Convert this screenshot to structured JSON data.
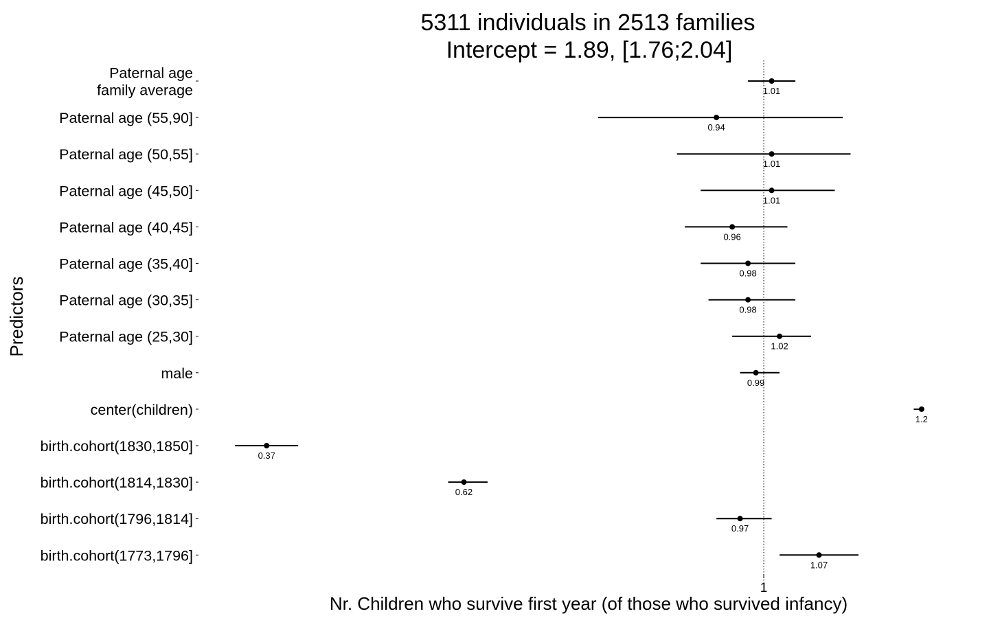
{
  "chart_data": {
    "type": "forest",
    "title_lines": [
      "5311 individuals in 2513 families",
      "Intercept = 1.89, [1.76;2.04]"
    ],
    "xlabel": "Nr. Children who survive first year (of those who survived infancy)",
    "ylabel": "Predictors",
    "reference_value": 1,
    "x_ticks": [
      {
        "value": 1,
        "label": "1"
      }
    ],
    "grid": false,
    "legend": "none",
    "xlim": [
      0.3289,
      1.2245
    ],
    "predictors": [
      {
        "label": [
          "Paternal age",
          "family average"
        ],
        "estimate": 1.01,
        "estimate_label": "1.01",
        "lower": 0.98,
        "upper": 1.04
      },
      {
        "label": [
          "Paternal age (55,90]"
        ],
        "estimate": 0.94,
        "estimate_label": "0.94",
        "lower": 0.79,
        "upper": 1.1
      },
      {
        "label": [
          "Paternal age (50,55]"
        ],
        "estimate": 1.01,
        "estimate_label": "1.01",
        "lower": 0.89,
        "upper": 1.11
      },
      {
        "label": [
          "Paternal age (45,50]"
        ],
        "estimate": 1.01,
        "estimate_label": "1.01",
        "lower": 0.92,
        "upper": 1.09
      },
      {
        "label": [
          "Paternal age (40,45]"
        ],
        "estimate": 0.96,
        "estimate_label": "0.96",
        "lower": 0.9,
        "upper": 1.03
      },
      {
        "label": [
          "Paternal age (35,40]"
        ],
        "estimate": 0.98,
        "estimate_label": "0.98",
        "lower": 0.92,
        "upper": 1.04
      },
      {
        "label": [
          "Paternal age (30,35]"
        ],
        "estimate": 0.98,
        "estimate_label": "0.98",
        "lower": 0.93,
        "upper": 1.04
      },
      {
        "label": [
          "Paternal age (25,30]"
        ],
        "estimate": 1.02,
        "estimate_label": "1.02",
        "lower": 0.96,
        "upper": 1.06
      },
      {
        "label": [
          "male"
        ],
        "estimate": 0.99,
        "estimate_label": "0.99",
        "lower": 0.97,
        "upper": 1.02
      },
      {
        "label": [
          "center(children)"
        ],
        "estimate": 1.2,
        "estimate_label": "1.2",
        "lower": 1.19,
        "upper": 1.2
      },
      {
        "label": [
          "birth.cohort(1830,1850]"
        ],
        "estimate": 0.37,
        "estimate_label": "0.37",
        "lower": 0.33,
        "upper": 0.41
      },
      {
        "label": [
          "birth.cohort(1814,1830]"
        ],
        "estimate": 0.62,
        "estimate_label": "0.62",
        "lower": 0.6,
        "upper": 0.65
      },
      {
        "label": [
          "birth.cohort(1796,1814]"
        ],
        "estimate": 0.97,
        "estimate_label": "0.97",
        "lower": 0.94,
        "upper": 1.01
      },
      {
        "label": [
          "birth.cohort(1773,1796]"
        ],
        "estimate": 1.07,
        "estimate_label": "1.07",
        "lower": 1.02,
        "upper": 1.12
      }
    ]
  }
}
